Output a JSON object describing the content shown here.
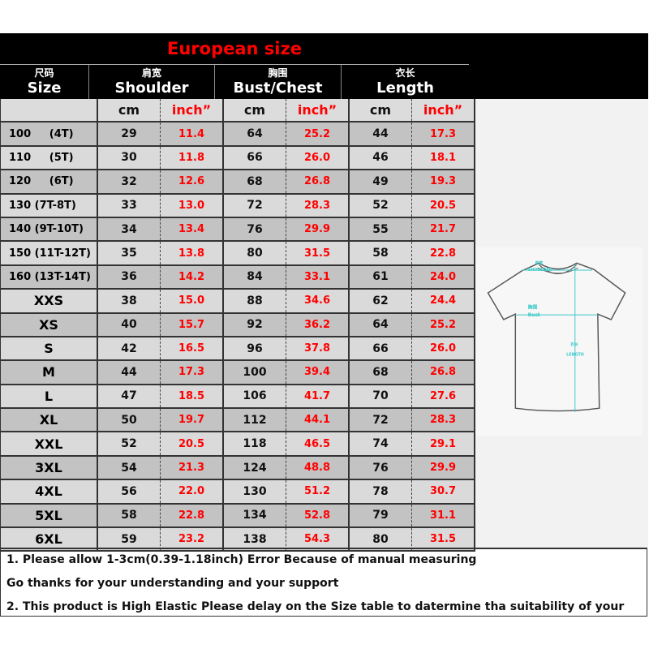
{
  "title": "European size",
  "headers": [
    {
      "zh": "尺码",
      "en": "Size"
    },
    {
      "zh": "肩宽",
      "en": "Shoulder"
    },
    {
      "zh": "胸围",
      "en": "Bust/Chest"
    },
    {
      "zh": "衣长",
      "en": "Length"
    }
  ],
  "units": {
    "cm": "cm",
    "inch": "inch”"
  },
  "rows": [
    {
      "size": "100     (4T)",
      "s_cm": "29",
      "s_in": "11.4",
      "b_cm": "64",
      "b_in": "25.2",
      "l_cm": "44",
      "l_in": "17.3"
    },
    {
      "size": "110     (5T)",
      "s_cm": "30",
      "s_in": "11.8",
      "b_cm": "66",
      "b_in": "26.0",
      "l_cm": "46",
      "l_in": "18.1"
    },
    {
      "size": "120     (6T)",
      "s_cm": "32",
      "s_in": "12.6",
      "b_cm": "68",
      "b_in": "26.8",
      "l_cm": "49",
      "l_in": "19.3"
    },
    {
      "size": "130 (7T-8T)",
      "s_cm": "33",
      "s_in": "13.0",
      "b_cm": "72",
      "b_in": "28.3",
      "l_cm": "52",
      "l_in": "20.5"
    },
    {
      "size": "140 (9T-10T)",
      "s_cm": "34",
      "s_in": "13.4",
      "b_cm": "76",
      "b_in": "29.9",
      "l_cm": "55",
      "l_in": "21.7"
    },
    {
      "size": "150 (11T-12T)",
      "s_cm": "35",
      "s_in": "13.8",
      "b_cm": "80",
      "b_in": "31.5",
      "l_cm": "58",
      "l_in": "22.8"
    },
    {
      "size": "160 (13T-14T)",
      "s_cm": "36",
      "s_in": "14.2",
      "b_cm": "84",
      "b_in": "33.1",
      "l_cm": "61",
      "l_in": "24.0"
    },
    {
      "size": "XXS",
      "s_cm": "38",
      "s_in": "15.0",
      "b_cm": "88",
      "b_in": "34.6",
      "l_cm": "62",
      "l_in": "24.4"
    },
    {
      "size": "XS",
      "s_cm": "40",
      "s_in": "15.7",
      "b_cm": "92",
      "b_in": "36.2",
      "l_cm": "64",
      "l_in": "25.2"
    },
    {
      "size": "S",
      "s_cm": "42",
      "s_in": "16.5",
      "b_cm": "96",
      "b_in": "37.8",
      "l_cm": "66",
      "l_in": "26.0"
    },
    {
      "size": "M",
      "s_cm": "44",
      "s_in": "17.3",
      "b_cm": "100",
      "b_in": "39.4",
      "l_cm": "68",
      "l_in": "26.8"
    },
    {
      "size": "L",
      "s_cm": "47",
      "s_in": "18.5",
      "b_cm": "106",
      "b_in": "41.7",
      "l_cm": "70",
      "l_in": "27.6"
    },
    {
      "size": "XL",
      "s_cm": "50",
      "s_in": "19.7",
      "b_cm": "112",
      "b_in": "44.1",
      "l_cm": "72",
      "l_in": "28.3"
    },
    {
      "size": "XXL",
      "s_cm": "52",
      "s_in": "20.5",
      "b_cm": "118",
      "b_in": "46.5",
      "l_cm": "74",
      "l_in": "29.1"
    },
    {
      "size": "3XL",
      "s_cm": "54",
      "s_in": "21.3",
      "b_cm": "124",
      "b_in": "48.8",
      "l_cm": "76",
      "l_in": "29.9"
    },
    {
      "size": "4XL",
      "s_cm": "56",
      "s_in": "22.0",
      "b_cm": "130",
      "b_in": "51.2",
      "l_cm": "78",
      "l_in": "30.7"
    },
    {
      "size": "5XL",
      "s_cm": "58",
      "s_in": "22.8",
      "b_cm": "134",
      "b_in": "52.8",
      "l_cm": "79",
      "l_in": "31.1"
    },
    {
      "size": "6XL",
      "s_cm": "59",
      "s_in": "23.2",
      "b_cm": "138",
      "b_in": "54.3",
      "l_cm": "80",
      "l_in": "31.5"
    }
  ],
  "diagram": {
    "shoulder_zh": "肩宽",
    "shoulder_en": "SHOULDER",
    "bust_zh": "胸围",
    "bust_en": "Bust",
    "length_zh": "衣长",
    "length_en": "LENGTH",
    "accent": "#3cc8c8"
  },
  "notes": [
    "1. Please allow 1-3cm(0.39-1.18inch) Error Because of manual measuring",
    "Go thanks for your understanding and your support",
    "2. This product is High Elastic  Please delay on the Size table to datermine tha suitability of your"
  ],
  "colors": {
    "title": "#ff0000",
    "inch_values": "#ff0000",
    "header_bg": "#000000",
    "row_dark": "#c3c3c3",
    "row_light": "#dadada"
  }
}
